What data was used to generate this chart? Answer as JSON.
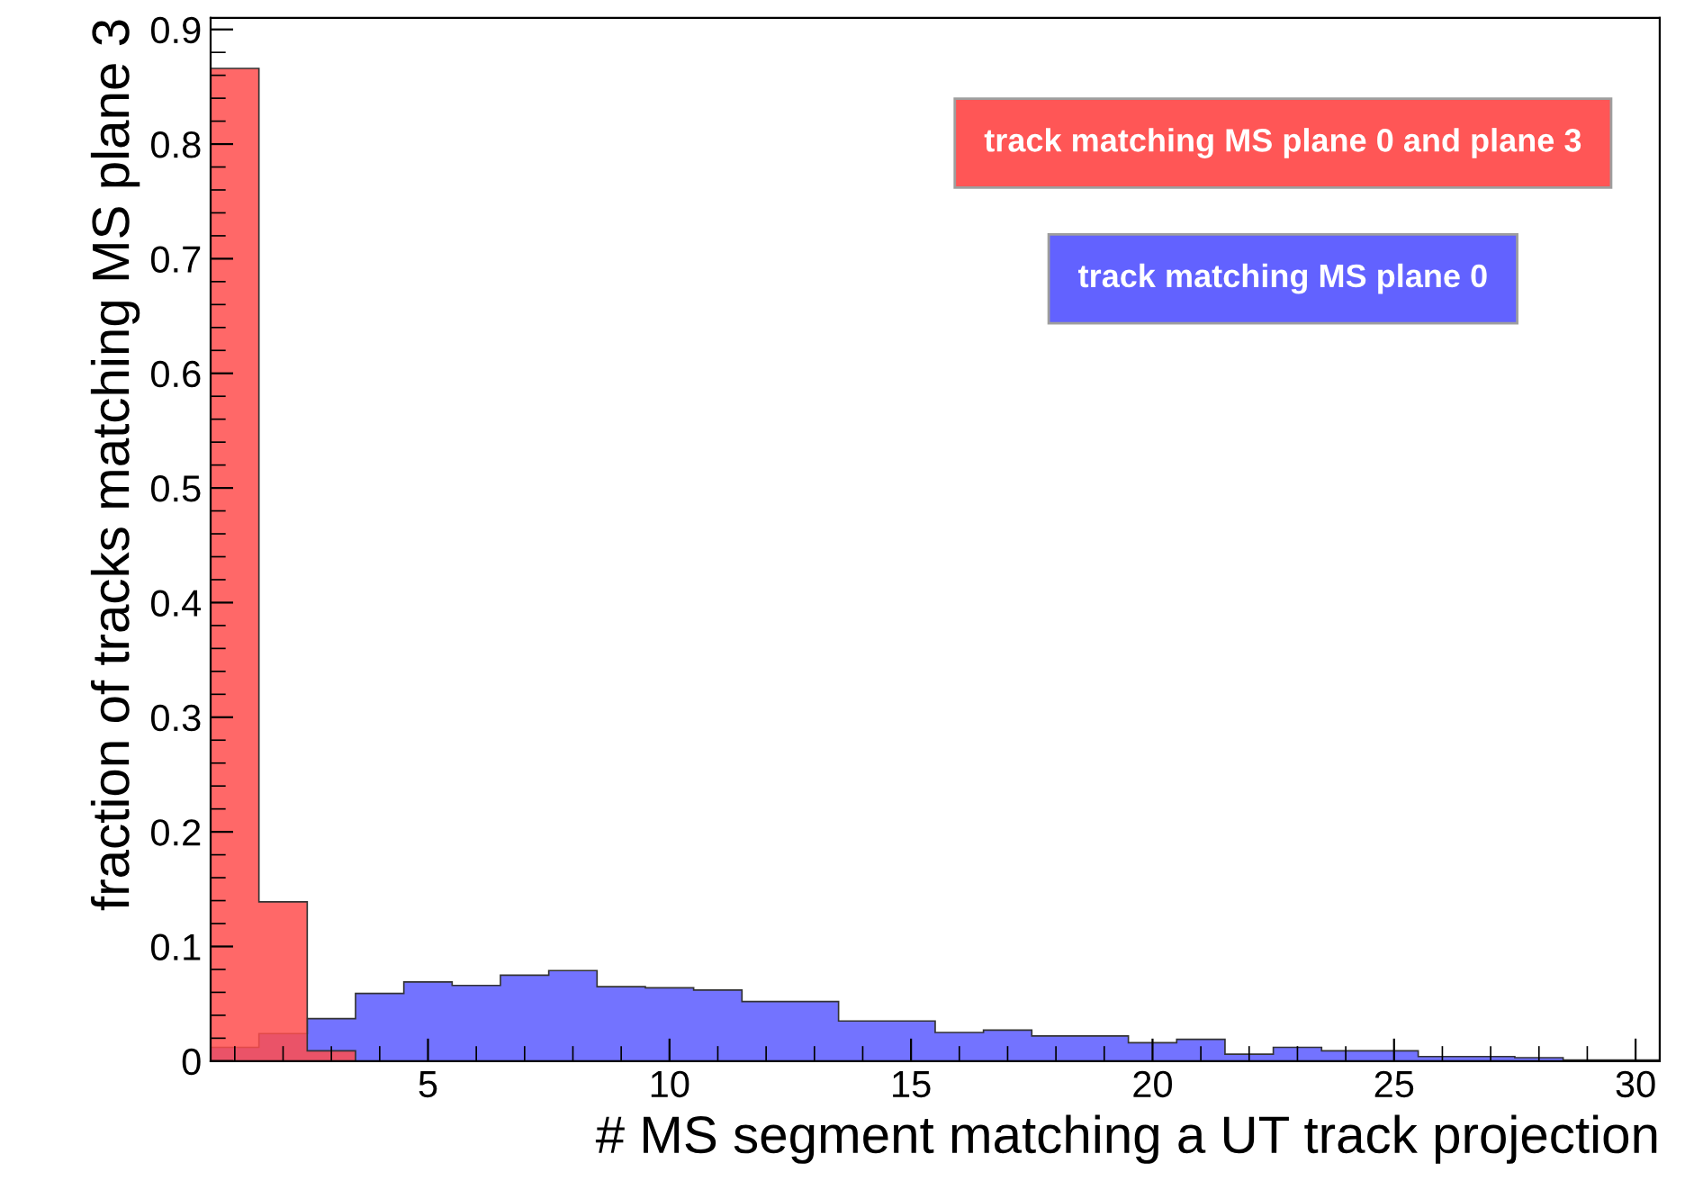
{
  "chart_data": {
    "type": "histogram",
    "xlabel": "# MS segment matching a UT track projection",
    "ylabel": "fraction of tracks matching MS plane 3",
    "bins": [
      0.5,
      1.5,
      2.5,
      3.5,
      4.5,
      5.5,
      6.5,
      7.5,
      8.5,
      9.5,
      10.5,
      11.5,
      12.5,
      13.5,
      14.5,
      15.5,
      16.5,
      17.5,
      18.5,
      19.5,
      20.5,
      21.5,
      22.5,
      23.5,
      24.5,
      25.5,
      26.5,
      27.5,
      28.5,
      29.5,
      30.5
    ],
    "series": [
      {
        "name": "track matching MS plane 0",
        "color": "#5a5aff",
        "values": [
          0.012,
          0.024,
          0.037,
          0.059,
          0.069,
          0.066,
          0.075,
          0.079,
          0.065,
          0.064,
          0.062,
          0.052,
          0.052,
          0.035,
          0.035,
          0.025,
          0.027,
          0.022,
          0.022,
          0.016,
          0.019,
          0.006,
          0.012,
          0.009,
          0.009,
          0.004,
          0.004,
          0.003,
          0.001,
          0.001
        ]
      },
      {
        "name": "track matching MS plane 0 and plane 3",
        "color": "#ff4d4d",
        "values": [
          0.866,
          0.139,
          0.009,
          0,
          0,
          0,
          0,
          0,
          0,
          0,
          0,
          0,
          0,
          0,
          0,
          0,
          0,
          0,
          0,
          0,
          0,
          0,
          0,
          0,
          0,
          0,
          0,
          0,
          0,
          0
        ]
      }
    ],
    "xlim": [
      0.5,
      30.5
    ],
    "ylim": [
      0,
      0.91
    ],
    "xticks": [
      5,
      10,
      15,
      20,
      25,
      30
    ],
    "yticks": [
      0,
      0.1,
      0.2,
      0.3,
      0.4,
      0.5,
      0.6,
      0.7,
      0.8,
      0.9
    ],
    "legend": "top right",
    "grid": false
  }
}
